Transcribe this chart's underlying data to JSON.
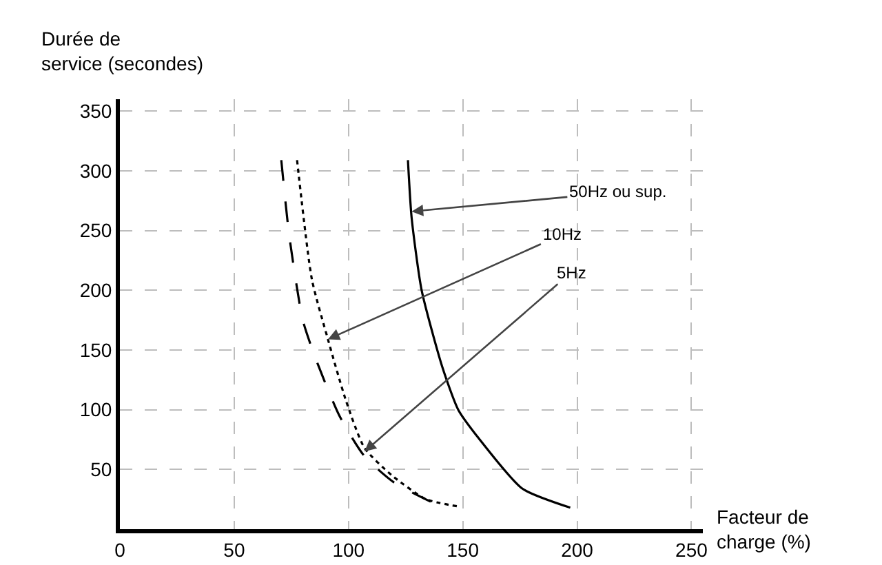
{
  "chart_data": {
    "type": "line",
    "xlabel": "Facteur de\ncharge (%)",
    "ylabel": "Durée de\nservice (secondes)",
    "xlim": [
      0,
      255
    ],
    "xticks": [
      0,
      50,
      100,
      150,
      200,
      250
    ],
    "ylim": [
      0,
      360
    ],
    "yticks": [
      50,
      100,
      150,
      200,
      250,
      300,
      350
    ],
    "grid": true,
    "marker": "none",
    "series": [
      {
        "color": "#000000",
        "line_style": "solid",
        "x": [
          126,
          127.6,
          132,
          141,
          148,
          157,
          176,
          197
        ],
        "values": [
          309,
          261,
          200,
          136,
          100,
          76,
          34,
          18
        ]
      },
      {
        "color": "#000000",
        "line_style": "dotted",
        "x": [
          77.5,
          84,
          91,
          99,
          107,
          119,
          134,
          148
        ],
        "values": [
          309,
          209,
          159,
          107,
          68,
          45,
          25,
          19
        ]
      },
      {
        "color": "#000000",
        "line_style": "dashed",
        "x": [
          70.6,
          74,
          80,
          86,
          96,
          107,
          120,
          137
        ],
        "values": [
          309,
          247,
          175,
          141,
          95,
          61,
          39,
          22
        ]
      }
    ],
    "annotations": [
      {
        "text": "50Hz ou sup.",
        "x": 127.6,
        "y": 266
      },
      {
        "text": "10Hz",
        "x": 91,
        "y": 159
      },
      {
        "text": "5Hz",
        "x": 107,
        "y": 65
      }
    ]
  }
}
